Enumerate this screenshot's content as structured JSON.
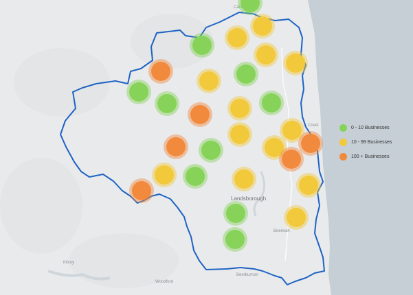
{
  "colors": {
    "land": "#e9eaeb",
    "sea": "#c5cfd5",
    "boundary": "#1e63c4",
    "green": "#87d35a",
    "yellow": "#f2c93b",
    "orange": "#f28a3d"
  },
  "legend": [
    {
      "label": "0 - 10 Businesses",
      "color": "#87d35a"
    },
    {
      "label": "10 - 99 Businesses",
      "color": "#f2c93b"
    },
    {
      "label": "100 + Businesses",
      "color": "#f28a3d"
    }
  ],
  "place_labels": {
    "caloundra": "Caloundra",
    "landsborough": "Landsborough",
    "beerwah": "Beerwah",
    "beerburrum": "Beerburrum",
    "woodford": "Woodford",
    "kilcoy": "Kilcoy",
    "coast": "Coast"
  },
  "map": {
    "clusters": [
      {
        "category": "green"
      },
      {
        "category": "yellow"
      },
      {
        "category": "yellow"
      },
      {
        "category": "green"
      },
      {
        "category": "yellow"
      },
      {
        "category": "yellow"
      },
      {
        "category": "orange"
      },
      {
        "category": "green"
      },
      {
        "category": "yellow"
      },
      {
        "category": "green"
      },
      {
        "category": "green"
      },
      {
        "category": "green"
      },
      {
        "category": "yellow"
      },
      {
        "category": "orange"
      },
      {
        "category": "yellow"
      },
      {
        "category": "yellow"
      },
      {
        "category": "orange"
      },
      {
        "category": "green"
      },
      {
        "category": "yellow"
      },
      {
        "category": "orange"
      },
      {
        "category": "orange"
      },
      {
        "category": "yellow"
      },
      {
        "category": "green"
      },
      {
        "category": "yellow"
      },
      {
        "category": "yellow"
      },
      {
        "category": "orange"
      },
      {
        "category": "green"
      },
      {
        "category": "yellow"
      },
      {
        "category": "green"
      },
      {
        "category": "yellow"
      }
    ]
  }
}
